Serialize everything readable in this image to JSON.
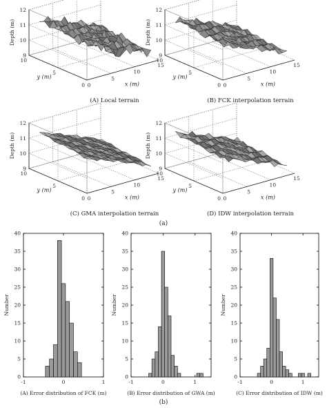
{
  "figure": {
    "label_a": "(a)",
    "label_b": "(b)"
  },
  "chart_data": [
    {
      "type": "surface",
      "caption": "(A) Local terrain",
      "zlabel": "Depth (m)",
      "xlabel": "x (m)",
      "ylabel": "y (m)",
      "zlim": [
        9,
        12
      ],
      "zticks": [
        9,
        10,
        11,
        12
      ],
      "xticks": [
        0,
        5,
        10,
        15
      ],
      "yticks": [
        0,
        5,
        10
      ],
      "surface_color": "#9a9a9a"
    },
    {
      "type": "surface",
      "caption": "(B) FCK interpolation terrain",
      "zlabel": "Depth (m)",
      "xlabel": "x (m)",
      "ylabel": "y (m)",
      "zlim": [
        9,
        12
      ],
      "zticks": [
        9,
        10,
        11,
        12
      ],
      "xticks": [
        0,
        5,
        10,
        15
      ],
      "yticks": [
        0,
        5,
        10
      ],
      "surface_color": "#9a9a9a"
    },
    {
      "type": "surface",
      "caption": "(C) GMA interpolation terrain",
      "zlabel": "Depth (m)",
      "xlabel": "x (m)",
      "ylabel": "y (m)",
      "zlim": [
        9,
        12
      ],
      "zticks": [
        9,
        10,
        11,
        12
      ],
      "xticks": [
        0,
        5,
        10,
        15
      ],
      "yticks": [
        0,
        5,
        10
      ],
      "surface_color": "#9a9a9a"
    },
    {
      "type": "surface",
      "caption": "(D) IDW interpolation terrain",
      "zlabel": "Depth (m)",
      "xlabel": "x (m)",
      "ylabel": "y (m)",
      "zlim": [
        9,
        12
      ],
      "zticks": [
        9,
        10,
        11,
        12
      ],
      "xticks": [
        0,
        5,
        10,
        15
      ],
      "yticks": [
        0,
        5,
        10
      ],
      "surface_color": "#9a9a9a"
    },
    {
      "type": "bar",
      "subtype": "histogram",
      "caption": "(A) Error distribution of FCK (m)",
      "ylabel": "Number",
      "xlim": [
        -1,
        1
      ],
      "ylim": [
        0,
        40
      ],
      "xticks": [
        -1,
        0,
        1
      ],
      "yticks": [
        0,
        5,
        10,
        15,
        20,
        25,
        30,
        35,
        40
      ],
      "bin_width": 0.1,
      "x": [
        -0.4,
        -0.3,
        -0.2,
        -0.1,
        0.0,
        0.1,
        0.2,
        0.3,
        0.4
      ],
      "values": [
        3,
        5,
        9,
        38,
        26,
        21,
        15,
        7,
        4
      ],
      "bar_color": "#9a9a9a"
    },
    {
      "type": "bar",
      "subtype": "histogram",
      "caption": "(B) Error distribution of GWA (m)",
      "ylabel": "Number",
      "xlim": [
        -1,
        1.5
      ],
      "ylim": [
        0,
        40
      ],
      "xticks": [
        -1,
        0,
        1
      ],
      "yticks": [
        0,
        5,
        10,
        15,
        20,
        25,
        30,
        35,
        40
      ],
      "bin_width": 0.1,
      "x": [
        -0.4,
        -0.3,
        -0.2,
        -0.1,
        0.0,
        0.1,
        0.2,
        0.3,
        0.4,
        0.5,
        1.1,
        1.2
      ],
      "values": [
        1,
        5,
        7,
        14,
        35,
        25,
        17,
        6,
        3,
        1,
        1,
        1
      ],
      "bar_color": "#9a9a9a"
    },
    {
      "type": "bar",
      "subtype": "histogram",
      "caption": "(C) Error distribution of IDW (m)",
      "ylabel": "Number",
      "xlim": [
        -1,
        1.5
      ],
      "ylim": [
        0,
        40
      ],
      "xticks": [
        -1,
        0,
        1
      ],
      "yticks": [
        0,
        5,
        10,
        15,
        20,
        25,
        30,
        35,
        40
      ],
      "bin_width": 0.1,
      "x": [
        -0.4,
        -0.3,
        -0.2,
        -0.1,
        0.0,
        0.1,
        0.2,
        0.3,
        0.4,
        0.5,
        0.6,
        0.9,
        1.0,
        1.2
      ],
      "values": [
        1,
        3,
        5,
        8,
        33,
        22,
        16,
        7,
        3,
        2,
        1,
        1,
        1,
        1
      ],
      "bar_color": "#9a9a9a"
    }
  ]
}
